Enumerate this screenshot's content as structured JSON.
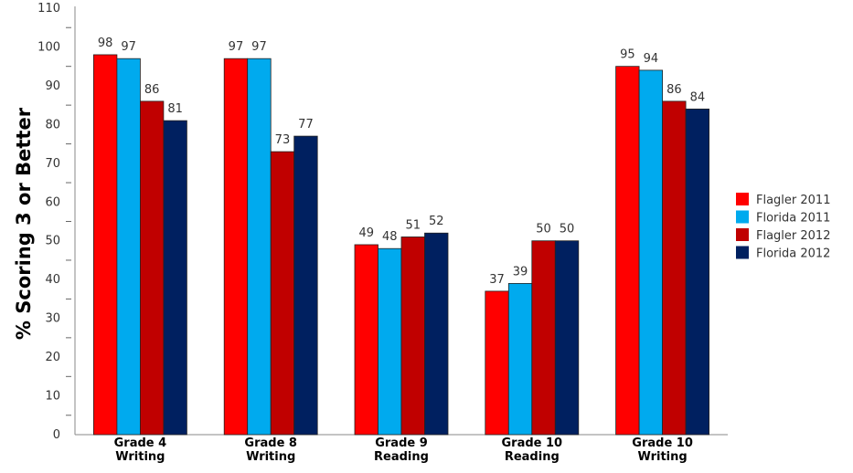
{
  "chart_data": {
    "type": "bar",
    "ylabel": "% Scoring 3 or Better",
    "ylim": [
      0,
      110
    ],
    "y_ticks": [
      "0",
      "10",
      "20",
      "30",
      "40",
      "50",
      "60",
      "70",
      "80",
      "90",
      "100",
      "110"
    ],
    "grid": false,
    "legend_position": "right",
    "categories": [
      [
        "Grade 4",
        "Writing"
      ],
      [
        "Grade 8",
        "Writing"
      ],
      [
        "Grade 9",
        "Reading"
      ],
      [
        "Grade 10",
        "Reading"
      ],
      [
        "Grade 10",
        "Writing"
      ]
    ],
    "series": [
      {
        "name": "Flagler 2011",
        "color": "#ff0000",
        "values": [
          98,
          97,
          49,
          37,
          95
        ]
      },
      {
        "name": "Florida 2011",
        "color": "#00aaee",
        "values": [
          97,
          97,
          48,
          39,
          94
        ]
      },
      {
        "name": "Flagler 2012",
        "color": "#c00000",
        "values": [
          86,
          73,
          51,
          50,
          86
        ]
      },
      {
        "name": "Florida 2012",
        "color": "#002060",
        "values": [
          81,
          77,
          52,
          50,
          84
        ]
      }
    ]
  }
}
